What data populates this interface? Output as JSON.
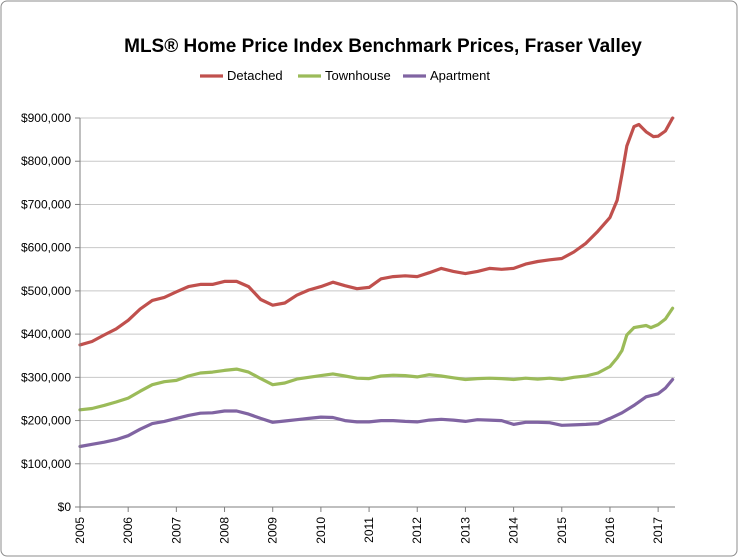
{
  "chart_data": {
    "type": "line",
    "title": "MLS® Home Price Index Benchmark Prices, Fraser Valley",
    "xlabel": "",
    "ylabel": "",
    "xlim": [
      2005,
      2017.35
    ],
    "ylim": [
      0,
      900000
    ],
    "grid": true,
    "legend": "top",
    "x_ticks": [
      "2005",
      "2006",
      "2007",
      "2008",
      "2009",
      "2010",
      "2011",
      "2012",
      "2013",
      "2014",
      "2015",
      "2016",
      "2017"
    ],
    "y_ticks": [
      {
        "value": 0,
        "label": "$0"
      },
      {
        "value": 100000,
        "label": "$100,000"
      },
      {
        "value": 200000,
        "label": "$200,000"
      },
      {
        "value": 300000,
        "label": "$300,000"
      },
      {
        "value": 400000,
        "label": "$400,000"
      },
      {
        "value": 500000,
        "label": "$500,000"
      },
      {
        "value": 600000,
        "label": "$600,000"
      },
      {
        "value": 700000,
        "label": "$700,000"
      },
      {
        "value": 800000,
        "label": "$800,000"
      },
      {
        "value": 900000,
        "label": "$900,000"
      }
    ],
    "series": [
      {
        "name": "Detached",
        "color": "#c0504d",
        "x": [
          2005,
          2005.25,
          2005.5,
          2005.75,
          2006,
          2006.25,
          2006.5,
          2006.75,
          2007,
          2007.25,
          2007.5,
          2007.75,
          2008,
          2008.25,
          2008.5,
          2008.75,
          2009,
          2009.25,
          2009.5,
          2009.75,
          2010,
          2010.25,
          2010.5,
          2010.75,
          2011,
          2011.25,
          2011.5,
          2011.75,
          2012,
          2012.25,
          2012.5,
          2012.75,
          2013,
          2013.25,
          2013.5,
          2013.75,
          2014,
          2014.25,
          2014.5,
          2014.75,
          2015,
          2015.25,
          2015.5,
          2015.75,
          2016,
          2016.15,
          2016.25,
          2016.35,
          2016.5,
          2016.6,
          2016.75,
          2016.9,
          2017,
          2017.15,
          2017.3
        ],
        "values": [
          375000,
          383000,
          398000,
          412000,
          432000,
          458000,
          478000,
          485000,
          498000,
          510000,
          515000,
          515000,
          522000,
          522000,
          510000,
          480000,
          467000,
          472000,
          490000,
          502000,
          510000,
          520000,
          512000,
          505000,
          508000,
          528000,
          533000,
          535000,
          533000,
          542000,
          552000,
          545000,
          540000,
          545000,
          552000,
          550000,
          552000,
          562000,
          568000,
          572000,
          575000,
          590000,
          610000,
          638000,
          670000,
          710000,
          770000,
          835000,
          880000,
          885000,
          868000,
          857000,
          858000,
          870000,
          900000
        ]
      },
      {
        "name": "Townhouse",
        "color": "#9bbb59",
        "x": [
          2005,
          2005.25,
          2005.5,
          2005.75,
          2006,
          2006.25,
          2006.5,
          2006.75,
          2007,
          2007.25,
          2007.5,
          2007.75,
          2008,
          2008.25,
          2008.5,
          2008.75,
          2009,
          2009.25,
          2009.5,
          2009.75,
          2010,
          2010.25,
          2010.5,
          2010.75,
          2011,
          2011.25,
          2011.5,
          2011.75,
          2012,
          2012.25,
          2012.5,
          2012.75,
          2013,
          2013.25,
          2013.5,
          2013.75,
          2014,
          2014.25,
          2014.5,
          2014.75,
          2015,
          2015.25,
          2015.5,
          2015.75,
          2016,
          2016.15,
          2016.25,
          2016.35,
          2016.5,
          2016.75,
          2016.85,
          2017,
          2017.15,
          2017.3
        ],
        "values": [
          225000,
          228000,
          235000,
          243000,
          252000,
          268000,
          283000,
          290000,
          293000,
          303000,
          310000,
          312000,
          316000,
          319000,
          312000,
          297000,
          283000,
          287000,
          296000,
          300000,
          304000,
          308000,
          303000,
          298000,
          297000,
          303000,
          305000,
          304000,
          301000,
          306000,
          303000,
          299000,
          295000,
          297000,
          298000,
          297000,
          295000,
          298000,
          296000,
          298000,
          295000,
          300000,
          303000,
          310000,
          325000,
          345000,
          362000,
          398000,
          415000,
          420000,
          415000,
          422000,
          435000,
          460000
        ]
      },
      {
        "name": "Apartment",
        "color": "#8064a2",
        "x": [
          2005,
          2005.25,
          2005.5,
          2005.75,
          2006,
          2006.25,
          2006.5,
          2006.75,
          2007,
          2007.25,
          2007.5,
          2007.75,
          2008,
          2008.25,
          2008.5,
          2008.75,
          2009,
          2009.25,
          2009.5,
          2009.75,
          2010,
          2010.25,
          2010.5,
          2010.75,
          2011,
          2011.25,
          2011.5,
          2011.75,
          2012,
          2012.25,
          2012.5,
          2012.75,
          2013,
          2013.25,
          2013.5,
          2013.75,
          2014,
          2014.25,
          2014.5,
          2014.75,
          2015,
          2015.25,
          2015.5,
          2015.75,
          2016,
          2016.25,
          2016.5,
          2016.75,
          2017,
          2017.15,
          2017.3
        ],
        "values": [
          140000,
          145000,
          150000,
          156000,
          165000,
          180000,
          193000,
          198000,
          205000,
          212000,
          217000,
          218000,
          222000,
          222000,
          215000,
          205000,
          196000,
          199000,
          202000,
          205000,
          208000,
          207000,
          200000,
          197000,
          197000,
          200000,
          200000,
          198000,
          197000,
          201000,
          203000,
          201000,
          198000,
          202000,
          201000,
          200000,
          191000,
          196000,
          196000,
          195000,
          189000,
          190000,
          191000,
          193000,
          205000,
          218000,
          235000,
          255000,
          262000,
          275000,
          295000
        ]
      }
    ]
  }
}
